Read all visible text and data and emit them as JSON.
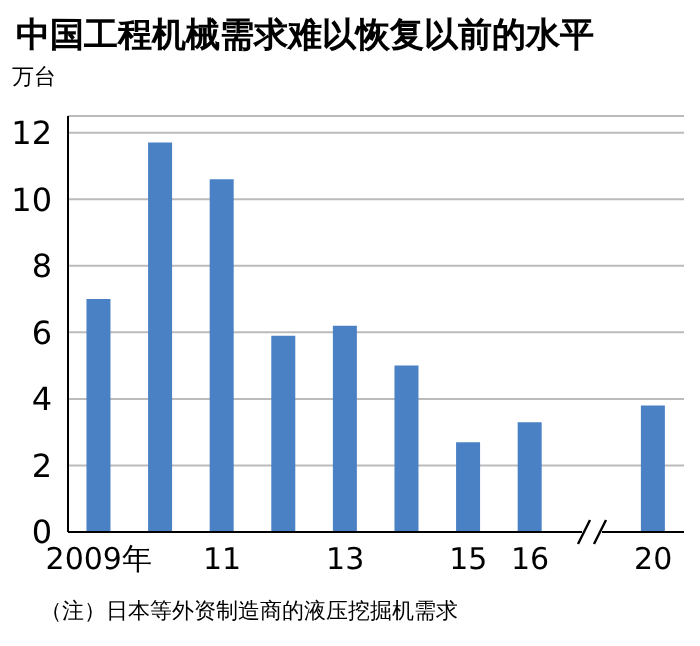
{
  "chart_data": {
    "type": "bar",
    "title": "中国工程机械需求难以恢复以前的水平",
    "ylabel": "万台",
    "categories": [
      "2009年",
      null,
      "11",
      null,
      "13",
      null,
      "15",
      "16",
      null,
      "20"
    ],
    "values": [
      7.0,
      11.7,
      10.6,
      5.9,
      6.2,
      5.0,
      2.7,
      3.3,
      null,
      3.8
    ],
    "color": "#4a80c4",
    "ylim": [
      0,
      12.5
    ],
    "yticks": [
      0,
      2,
      4,
      6,
      8,
      10,
      12
    ],
    "grid": "y",
    "annotations": [
      "（注）日本等外资制造商的液压挖掘机需求"
    ]
  }
}
